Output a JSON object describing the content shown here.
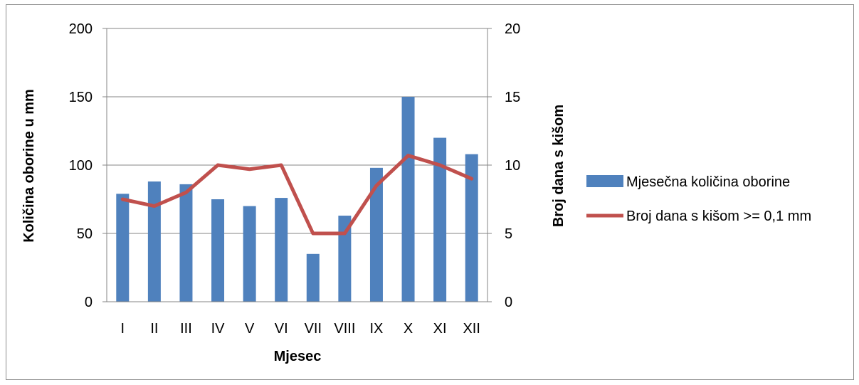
{
  "chart_data": {
    "type": "bar",
    "categories": [
      "I",
      "II",
      "III",
      "IV",
      "V",
      "VI",
      "VII",
      "VIII",
      "IX",
      "X",
      "XI",
      "XII"
    ],
    "series": [
      {
        "name": "Mjesečna količina oborine",
        "type": "bar",
        "axis": "left",
        "color": "#4f81bd",
        "values": [
          79,
          88,
          86,
          75,
          70,
          76,
          35,
          63,
          98,
          150,
          120,
          108
        ]
      },
      {
        "name": "Broj dana s kišom >= 0,1 mm",
        "type": "line",
        "axis": "right",
        "color": "#c0504d",
        "values": [
          7.5,
          7.0,
          8.0,
          10.0,
          9.7,
          10.0,
          5.0,
          5.0,
          8.5,
          10.7,
          10.0,
          9.0
        ]
      }
    ],
    "xlabel": "Mjesec",
    "ylabel": "Količina oborine u mm",
    "y2label": "Broj dana s kišom",
    "ylim": [
      0,
      200
    ],
    "yticks": [
      "0",
      "50",
      "100",
      "150",
      "200"
    ],
    "y2lim": [
      0,
      20
    ],
    "y2ticks": [
      "0",
      "5",
      "10",
      "15",
      "20"
    ],
    "grid": true,
    "legend": "right"
  }
}
